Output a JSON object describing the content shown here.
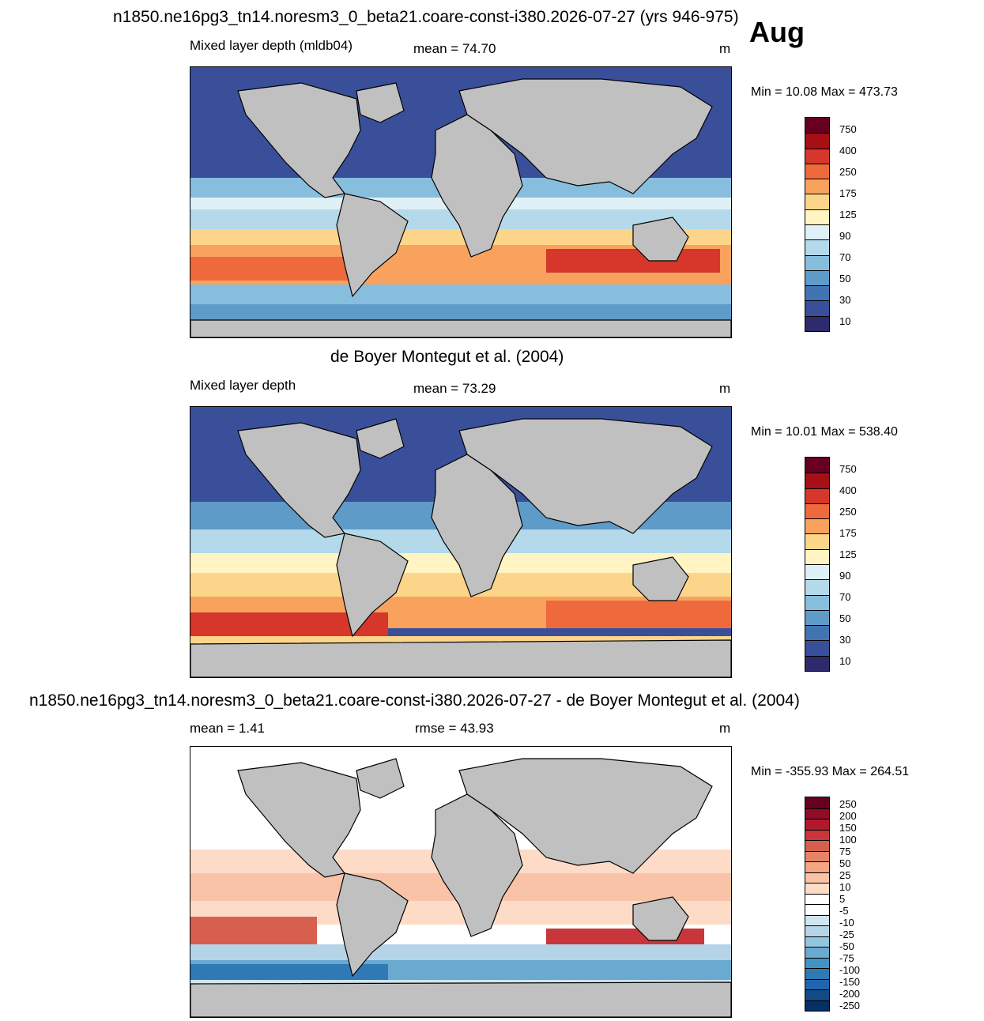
{
  "month": "Aug",
  "panels": [
    {
      "title": "n1850.ne16pg3_tn14.noresm3_0_beta21.coare-const-i380.2026-07-27 (yrs 946-975)",
      "left_label": "Mixed layer depth (mldb04)",
      "center_label": "mean =  74.70",
      "units": "m",
      "minmax": "Min =  10.08 Max = 473.73"
    },
    {
      "title": "de Boyer Montegut et al. (2004)",
      "left_label": "Mixed layer depth",
      "center_label": "mean =  73.29",
      "units": "m",
      "minmax": "Min =  10.01 Max = 538.40"
    },
    {
      "title": "n1850.ne16pg3_tn14.noresm3_0_beta21.coare-const-i380.2026-07-27 - de Boyer Montegut et al. (2004)",
      "left_label": "mean =   1.41",
      "center_label": "rmse =  43.93",
      "units": "m",
      "minmax": "Min = -355.93 Max = 264.51"
    }
  ],
  "chart_data": [
    {
      "type": "heatmap",
      "name": "model",
      "colorbar_levels": [
        "750",
        "400",
        "250",
        "175",
        "125",
        "90",
        "70",
        "50",
        "30",
        "10"
      ],
      "colorbar_colors": [
        "#67001f",
        "#a50f15",
        "#d6372a",
        "#ee6a3c",
        "#f9a25e",
        "#fdd58a",
        "#fff4c2",
        "#dff0f6",
        "#b3d9ea",
        "#87bedd",
        "#5f9bc9",
        "#4274b4",
        "#3a4f9a",
        "#2d2a6e"
      ]
    },
    {
      "type": "heatmap",
      "name": "observations",
      "colorbar_levels": [
        "750",
        "400",
        "250",
        "175",
        "125",
        "90",
        "70",
        "50",
        "30",
        "10"
      ],
      "colorbar_colors": [
        "#67001f",
        "#a50f15",
        "#d6372a",
        "#ee6a3c",
        "#f9a25e",
        "#fdd58a",
        "#fff4c2",
        "#dff0f6",
        "#b3d9ea",
        "#87bedd",
        "#5f9bc9",
        "#4274b4",
        "#3a4f9a",
        "#2d2a6e"
      ]
    },
    {
      "type": "heatmap",
      "name": "difference",
      "colorbar_levels": [
        "250",
        "200",
        "150",
        "100",
        "75",
        "50",
        "25",
        "10",
        "5",
        "-5",
        "-10",
        "-25",
        "-50",
        "-75",
        "-100",
        "-150",
        "-200",
        "-250"
      ],
      "colorbar_colors": [
        "#67001f",
        "#8e0c25",
        "#b2182b",
        "#c8353a",
        "#d6604d",
        "#e58368",
        "#f4a582",
        "#f8c3a6",
        "#fddbc7",
        "#ffffff",
        "#ffffff",
        "#d1e5f0",
        "#b5d4e8",
        "#92c5de",
        "#6aa9d0",
        "#4393c3",
        "#2f79b5",
        "#2166ac",
        "#134b87",
        "#053061"
      ]
    }
  ]
}
